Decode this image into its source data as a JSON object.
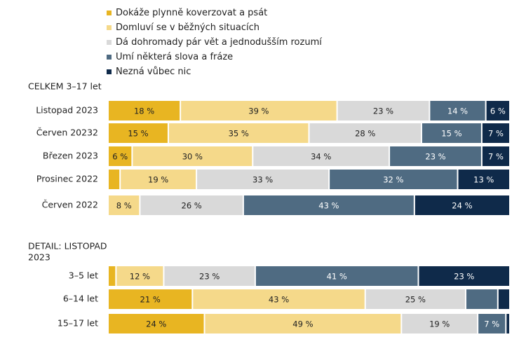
{
  "colors": {
    "c1": "#e8b522",
    "c2": "#f5d98a",
    "c3": "#d9d9d9",
    "c4": "#4f6b82",
    "c5": "#0f2a4a"
  },
  "legend": [
    {
      "label": "Dokáže plynně koverzovat a psát",
      "color": "#e8b522"
    },
    {
      "label": "Domluví se v běžných situacích",
      "color": "#f5d98a"
    },
    {
      "label": "Dá dohromady pár vět a jednodušším rozumí",
      "color": "#d9d9d9"
    },
    {
      "label": "Umí některá slova a fráze",
      "color": "#4f6b82"
    },
    {
      "label": "Nezná vůbec nic",
      "color": "#0f2a4a"
    }
  ],
  "chart_data": {
    "type": "bar",
    "orientation": "horizontal-stacked-100",
    "series": [
      "Dokáže plynně koverzovat a psát",
      "Domluví se v běžných situacích",
      "Dá dohromady pár vět a jednodušším rozumí",
      "Umí některá slova a fráze",
      "Nezná vůbec nic"
    ],
    "groups": [
      {
        "title": "CELKEM 3–17 let",
        "rows": [
          {
            "label": "Listopad 2023",
            "values": [
              18,
              39,
              23,
              14,
              6
            ],
            "labels": [
              "18 %",
              "39 %",
              "23 %",
              "14 %",
              "6 %"
            ]
          },
          {
            "label": "Červen 20232",
            "values": [
              15,
              35,
              28,
              15,
              7
            ],
            "labels": [
              "15 %",
              "35 %",
              "28 %",
              "15 %",
              "7 %"
            ]
          },
          {
            "label": "Březen 2023",
            "values": [
              6,
              30,
              34,
              23,
              7
            ],
            "labels": [
              "6 %",
              "30 %",
              "34 %",
              "23 %",
              "7 %"
            ]
          },
          {
            "label": "Prosinec 2022",
            "values": [
              3,
              19,
              33,
              32,
              13
            ],
            "labels": [
              "",
              "19 %",
              "33 %",
              "32 %",
              "13 %"
            ]
          },
          {
            "label": "Červen 2022",
            "values": [
              0,
              8,
              26,
              43,
              24
            ],
            "labels": [
              "",
              "8 %",
              "26 %",
              "43 %",
              "24 %"
            ]
          }
        ]
      },
      {
        "title_lines": [
          "DETAIL: LISTOPAD",
          "2023"
        ],
        "rows": [
          {
            "label": "3–5 let",
            "values": [
              2,
              12,
              23,
              41,
              23
            ],
            "labels": [
              "",
              "12 %",
              "23 %",
              "41 %",
              "23 %"
            ]
          },
          {
            "label": "6–14 let",
            "values": [
              21,
              43,
              25,
              8,
              3
            ],
            "labels": [
              "21 %",
              "43 %",
              "25 %",
              "",
              ""
            ]
          },
          {
            "label": "15–17 let",
            "values": [
              24,
              49,
              19,
              7,
              1
            ],
            "labels": [
              "24 %",
              "49 %",
              "19 %",
              "7 %",
              ""
            ]
          }
        ]
      }
    ]
  }
}
